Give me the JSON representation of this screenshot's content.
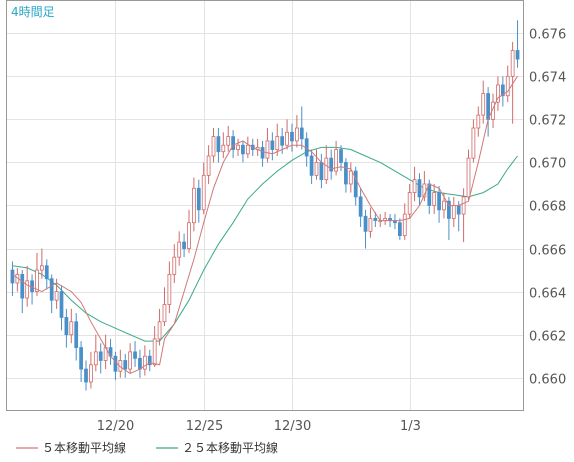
{
  "title": "4時間足",
  "legend": [
    {
      "label": "５本移動平均線",
      "color": "#d07878"
    },
    {
      "label": "２５本移動平均線",
      "color": "#3aaa8a"
    }
  ],
  "chart_data": {
    "type": "candlestick",
    "title": "4時間足",
    "x_ticks": [
      "12/20",
      "12/25",
      "12/30",
      "1/3"
    ],
    "y_ticks": [
      "0.676",
      "0.674",
      "0.672",
      "0.670",
      "0.668",
      "0.666",
      "0.664",
      "0.662",
      "0.660"
    ],
    "ylim": [
      0.6585,
      0.6775
    ],
    "grid": true,
    "up_color": "#d06a6a",
    "down_color": "#4a90c8",
    "series": [
      {
        "name": "５本移動平均線",
        "color": "#d07878",
        "points": [
          [
            0,
            0.6648
          ],
          [
            3,
            0.6643
          ],
          [
            6,
            0.664
          ],
          [
            9,
            0.6644
          ],
          [
            12,
            0.664
          ],
          [
            14,
            0.6635
          ],
          [
            16,
            0.6626
          ],
          [
            18,
            0.6618
          ],
          [
            20,
            0.661
          ],
          [
            22,
            0.6605
          ],
          [
            24,
            0.6602
          ],
          [
            26,
            0.6604
          ],
          [
            28,
            0.6607
          ],
          [
            30,
            0.6606
          ],
          [
            31,
            0.6618
          ],
          [
            33,
            0.6625
          ],
          [
            35,
            0.664
          ],
          [
            37,
            0.6655
          ],
          [
            39,
            0.6672
          ],
          [
            41,
            0.6688
          ],
          [
            43,
            0.67
          ],
          [
            45,
            0.6708
          ],
          [
            47,
            0.671
          ],
          [
            49,
            0.6707
          ],
          [
            51,
            0.6705
          ],
          [
            53,
            0.6704
          ],
          [
            55,
            0.6706
          ],
          [
            57,
            0.6708
          ],
          [
            59,
            0.6708
          ],
          [
            61,
            0.6705
          ],
          [
            63,
            0.67
          ],
          [
            65,
            0.6697
          ],
          [
            67,
            0.6698
          ],
          [
            69,
            0.6697
          ],
          [
            71,
            0.6688
          ],
          [
            73,
            0.668
          ],
          [
            75,
            0.6673
          ],
          [
            77,
            0.6673
          ],
          [
            79,
            0.6673
          ],
          [
            81,
            0.6674
          ],
          [
            83,
            0.668
          ],
          [
            85,
            0.669
          ],
          [
            87,
            0.6688
          ],
          [
            89,
            0.668
          ],
          [
            91,
            0.668
          ],
          [
            93,
            0.6682
          ],
          [
            95,
            0.67
          ],
          [
            97,
            0.672
          ],
          [
            99,
            0.673
          ],
          [
            101,
            0.6733
          ],
          [
            103,
            0.674
          ]
        ]
      },
      {
        "name": "２５本移動平均線",
        "color": "#3aaa8a",
        "points": [
          [
            0,
            0.6652
          ],
          [
            3,
            0.6651
          ],
          [
            6,
            0.6648
          ],
          [
            9,
            0.6643
          ],
          [
            12,
            0.6636
          ],
          [
            15,
            0.663
          ],
          [
            18,
            0.6626
          ],
          [
            21,
            0.6623
          ],
          [
            24,
            0.662
          ],
          [
            27,
            0.6617
          ],
          [
            30,
            0.6617
          ],
          [
            33,
            0.6625
          ],
          [
            36,
            0.6636
          ],
          [
            39,
            0.665
          ],
          [
            42,
            0.6662
          ],
          [
            45,
            0.6672
          ],
          [
            48,
            0.6683
          ],
          [
            51,
            0.669
          ],
          [
            54,
            0.6696
          ],
          [
            57,
            0.6701
          ],
          [
            60,
            0.6705
          ],
          [
            63,
            0.6707
          ],
          [
            66,
            0.6707
          ],
          [
            69,
            0.6706
          ],
          [
            72,
            0.6703
          ],
          [
            75,
            0.67
          ],
          [
            78,
            0.6696
          ],
          [
            81,
            0.6692
          ],
          [
            84,
            0.6688
          ],
          [
            87,
            0.6686
          ],
          [
            90,
            0.6685
          ],
          [
            93,
            0.6684
          ],
          [
            96,
            0.6686
          ],
          [
            99,
            0.669
          ],
          [
            101,
            0.6697
          ],
          [
            103,
            0.6703
          ]
        ]
      }
    ],
    "candles": [
      [
        0.665,
        0.6644,
        0.6654,
        0.6638
      ],
      [
        0.6644,
        0.6648,
        0.6651,
        0.664
      ],
      [
        0.6648,
        0.6637,
        0.665,
        0.663
      ],
      [
        0.6637,
        0.6645,
        0.6652,
        0.6633
      ],
      [
        0.6645,
        0.664,
        0.6648,
        0.6634
      ],
      [
        0.664,
        0.665,
        0.6658,
        0.6638
      ],
      [
        0.665,
        0.6652,
        0.666,
        0.6646
      ],
      [
        0.6652,
        0.6646,
        0.6655,
        0.6641
      ],
      [
        0.6646,
        0.6636,
        0.6648,
        0.663
      ],
      [
        0.6636,
        0.664,
        0.6646,
        0.6632
      ],
      [
        0.664,
        0.6628,
        0.6643,
        0.6622
      ],
      [
        0.6628,
        0.662,
        0.6632,
        0.6614
      ],
      [
        0.662,
        0.6626,
        0.6632,
        0.6616
      ],
      [
        0.6626,
        0.6614,
        0.663,
        0.6608
      ],
      [
        0.6614,
        0.6604,
        0.6617,
        0.6598
      ],
      [
        0.6604,
        0.6598,
        0.6608,
        0.6594
      ],
      [
        0.6598,
        0.6606,
        0.6612,
        0.6595
      ],
      [
        0.6606,
        0.6612,
        0.662,
        0.6603
      ],
      [
        0.6612,
        0.6608,
        0.6616,
        0.6602
      ],
      [
        0.6608,
        0.6614,
        0.662,
        0.6604
      ],
      [
        0.6614,
        0.661,
        0.6618,
        0.6606
      ],
      [
        0.661,
        0.6603,
        0.6612,
        0.6599
      ],
      [
        0.6603,
        0.6608,
        0.6613,
        0.66
      ],
      [
        0.6608,
        0.6604,
        0.6611,
        0.66
      ],
      [
        0.6604,
        0.6612,
        0.6616,
        0.6602
      ],
      [
        0.6612,
        0.6609,
        0.6617,
        0.6605
      ],
      [
        0.6609,
        0.6604,
        0.6613,
        0.66
      ],
      [
        0.6604,
        0.661,
        0.6615,
        0.6601
      ],
      [
        0.661,
        0.6606,
        0.6613,
        0.6603
      ],
      [
        0.6606,
        0.6618,
        0.6624,
        0.6605
      ],
      [
        0.6618,
        0.6626,
        0.6632,
        0.6615
      ],
      [
        0.6626,
        0.6634,
        0.6642,
        0.6624
      ],
      [
        0.6634,
        0.6648,
        0.6654,
        0.663
      ],
      [
        0.6648,
        0.6656,
        0.6662,
        0.6644
      ],
      [
        0.6656,
        0.6663,
        0.6668,
        0.6652
      ],
      [
        0.6663,
        0.666,
        0.6667,
        0.6656
      ],
      [
        0.666,
        0.6672,
        0.6678,
        0.6658
      ],
      [
        0.6672,
        0.6688,
        0.6693,
        0.6668
      ],
      [
        0.6688,
        0.6678,
        0.6692,
        0.6672
      ],
      [
        0.6678,
        0.6694,
        0.67,
        0.6676
      ],
      [
        0.6694,
        0.6703,
        0.6708,
        0.669
      ],
      [
        0.6703,
        0.6712,
        0.6716,
        0.67
      ],
      [
        0.6712,
        0.6705,
        0.6716,
        0.67
      ],
      [
        0.6705,
        0.6708,
        0.6714,
        0.6702
      ],
      [
        0.6708,
        0.6712,
        0.6717,
        0.6705
      ],
      [
        0.6712,
        0.6706,
        0.6715,
        0.6702
      ],
      [
        0.6706,
        0.6708,
        0.6711,
        0.6703
      ],
      [
        0.6708,
        0.6704,
        0.671,
        0.67
      ],
      [
        0.6704,
        0.6708,
        0.6712,
        0.6702
      ],
      [
        0.6708,
        0.6706,
        0.6711,
        0.6703
      ],
      [
        0.6706,
        0.6707,
        0.6711,
        0.6703
      ],
      [
        0.6707,
        0.6702,
        0.671,
        0.6698
      ],
      [
        0.6702,
        0.671,
        0.6716,
        0.67
      ],
      [
        0.671,
        0.6706,
        0.6714,
        0.6701
      ],
      [
        0.6706,
        0.6712,
        0.6718,
        0.6703
      ],
      [
        0.6712,
        0.6708,
        0.6716,
        0.6704
      ],
      [
        0.6708,
        0.6714,
        0.672,
        0.6706
      ],
      [
        0.6714,
        0.671,
        0.6718,
        0.6705
      ],
      [
        0.671,
        0.6716,
        0.6722,
        0.6707
      ],
      [
        0.6716,
        0.6711,
        0.6726,
        0.6706
      ],
      [
        0.6711,
        0.6703,
        0.6714,
        0.6698
      ],
      [
        0.6703,
        0.6694,
        0.6706,
        0.669
      ],
      [
        0.6694,
        0.67,
        0.6706,
        0.6692
      ],
      [
        0.67,
        0.6692,
        0.6704,
        0.6688
      ],
      [
        0.6692,
        0.6702,
        0.6708,
        0.669
      ],
      [
        0.6702,
        0.6696,
        0.6706,
        0.6692
      ],
      [
        0.6696,
        0.6706,
        0.671,
        0.6694
      ],
      [
        0.6706,
        0.67,
        0.6708,
        0.6696
      ],
      [
        0.67,
        0.669,
        0.6702,
        0.6686
      ],
      [
        0.669,
        0.6696,
        0.67,
        0.6686
      ],
      [
        0.6696,
        0.6684,
        0.6698,
        0.668
      ],
      [
        0.6684,
        0.6675,
        0.6688,
        0.667
      ],
      [
        0.6675,
        0.6668,
        0.6678,
        0.666
      ],
      [
        0.6668,
        0.6674,
        0.6679,
        0.6665
      ],
      [
        0.6674,
        0.6673,
        0.6677,
        0.667
      ],
      [
        0.6673,
        0.6673,
        0.6676,
        0.667
      ],
      [
        0.6673,
        0.6674,
        0.6677,
        0.6671
      ],
      [
        0.6674,
        0.6673,
        0.6676,
        0.667
      ],
      [
        0.6673,
        0.6672,
        0.6676,
        0.6669
      ],
      [
        0.6672,
        0.6666,
        0.6674,
        0.6664
      ],
      [
        0.6666,
        0.6676,
        0.6681,
        0.6664
      ],
      [
        0.6676,
        0.6686,
        0.669,
        0.6674
      ],
      [
        0.6686,
        0.6692,
        0.6698,
        0.6682
      ],
      [
        0.6692,
        0.6684,
        0.6695,
        0.668
      ],
      [
        0.6684,
        0.669,
        0.6696,
        0.6682
      ],
      [
        0.669,
        0.668,
        0.6692,
        0.6676
      ],
      [
        0.668,
        0.6686,
        0.669,
        0.6676
      ],
      [
        0.6686,
        0.6678,
        0.6689,
        0.6672
      ],
      [
        0.6678,
        0.6682,
        0.6686,
        0.6674
      ],
      [
        0.6682,
        0.6674,
        0.6684,
        0.6664
      ],
      [
        0.6674,
        0.668,
        0.6684,
        0.667
      ],
      [
        0.668,
        0.6676,
        0.6682,
        0.6668
      ],
      [
        0.6676,
        0.6684,
        0.6688,
        0.6663
      ],
      [
        0.6684,
        0.6702,
        0.6706,
        0.6682
      ],
      [
        0.6702,
        0.6716,
        0.672,
        0.67
      ],
      [
        0.6716,
        0.6722,
        0.6726,
        0.6712
      ],
      [
        0.6722,
        0.6732,
        0.6738,
        0.6718
      ],
      [
        0.6732,
        0.672,
        0.6735,
        0.6712
      ],
      [
        0.672,
        0.6728,
        0.6732,
        0.6716
      ],
      [
        0.6728,
        0.6736,
        0.674,
        0.6724
      ],
      [
        0.6736,
        0.6731,
        0.674,
        0.6726
      ],
      [
        0.6731,
        0.674,
        0.6745,
        0.6728
      ],
      [
        0.674,
        0.6752,
        0.6756,
        0.6718
      ],
      [
        0.6752,
        0.6748,
        0.6766,
        0.6744
      ]
    ]
  }
}
